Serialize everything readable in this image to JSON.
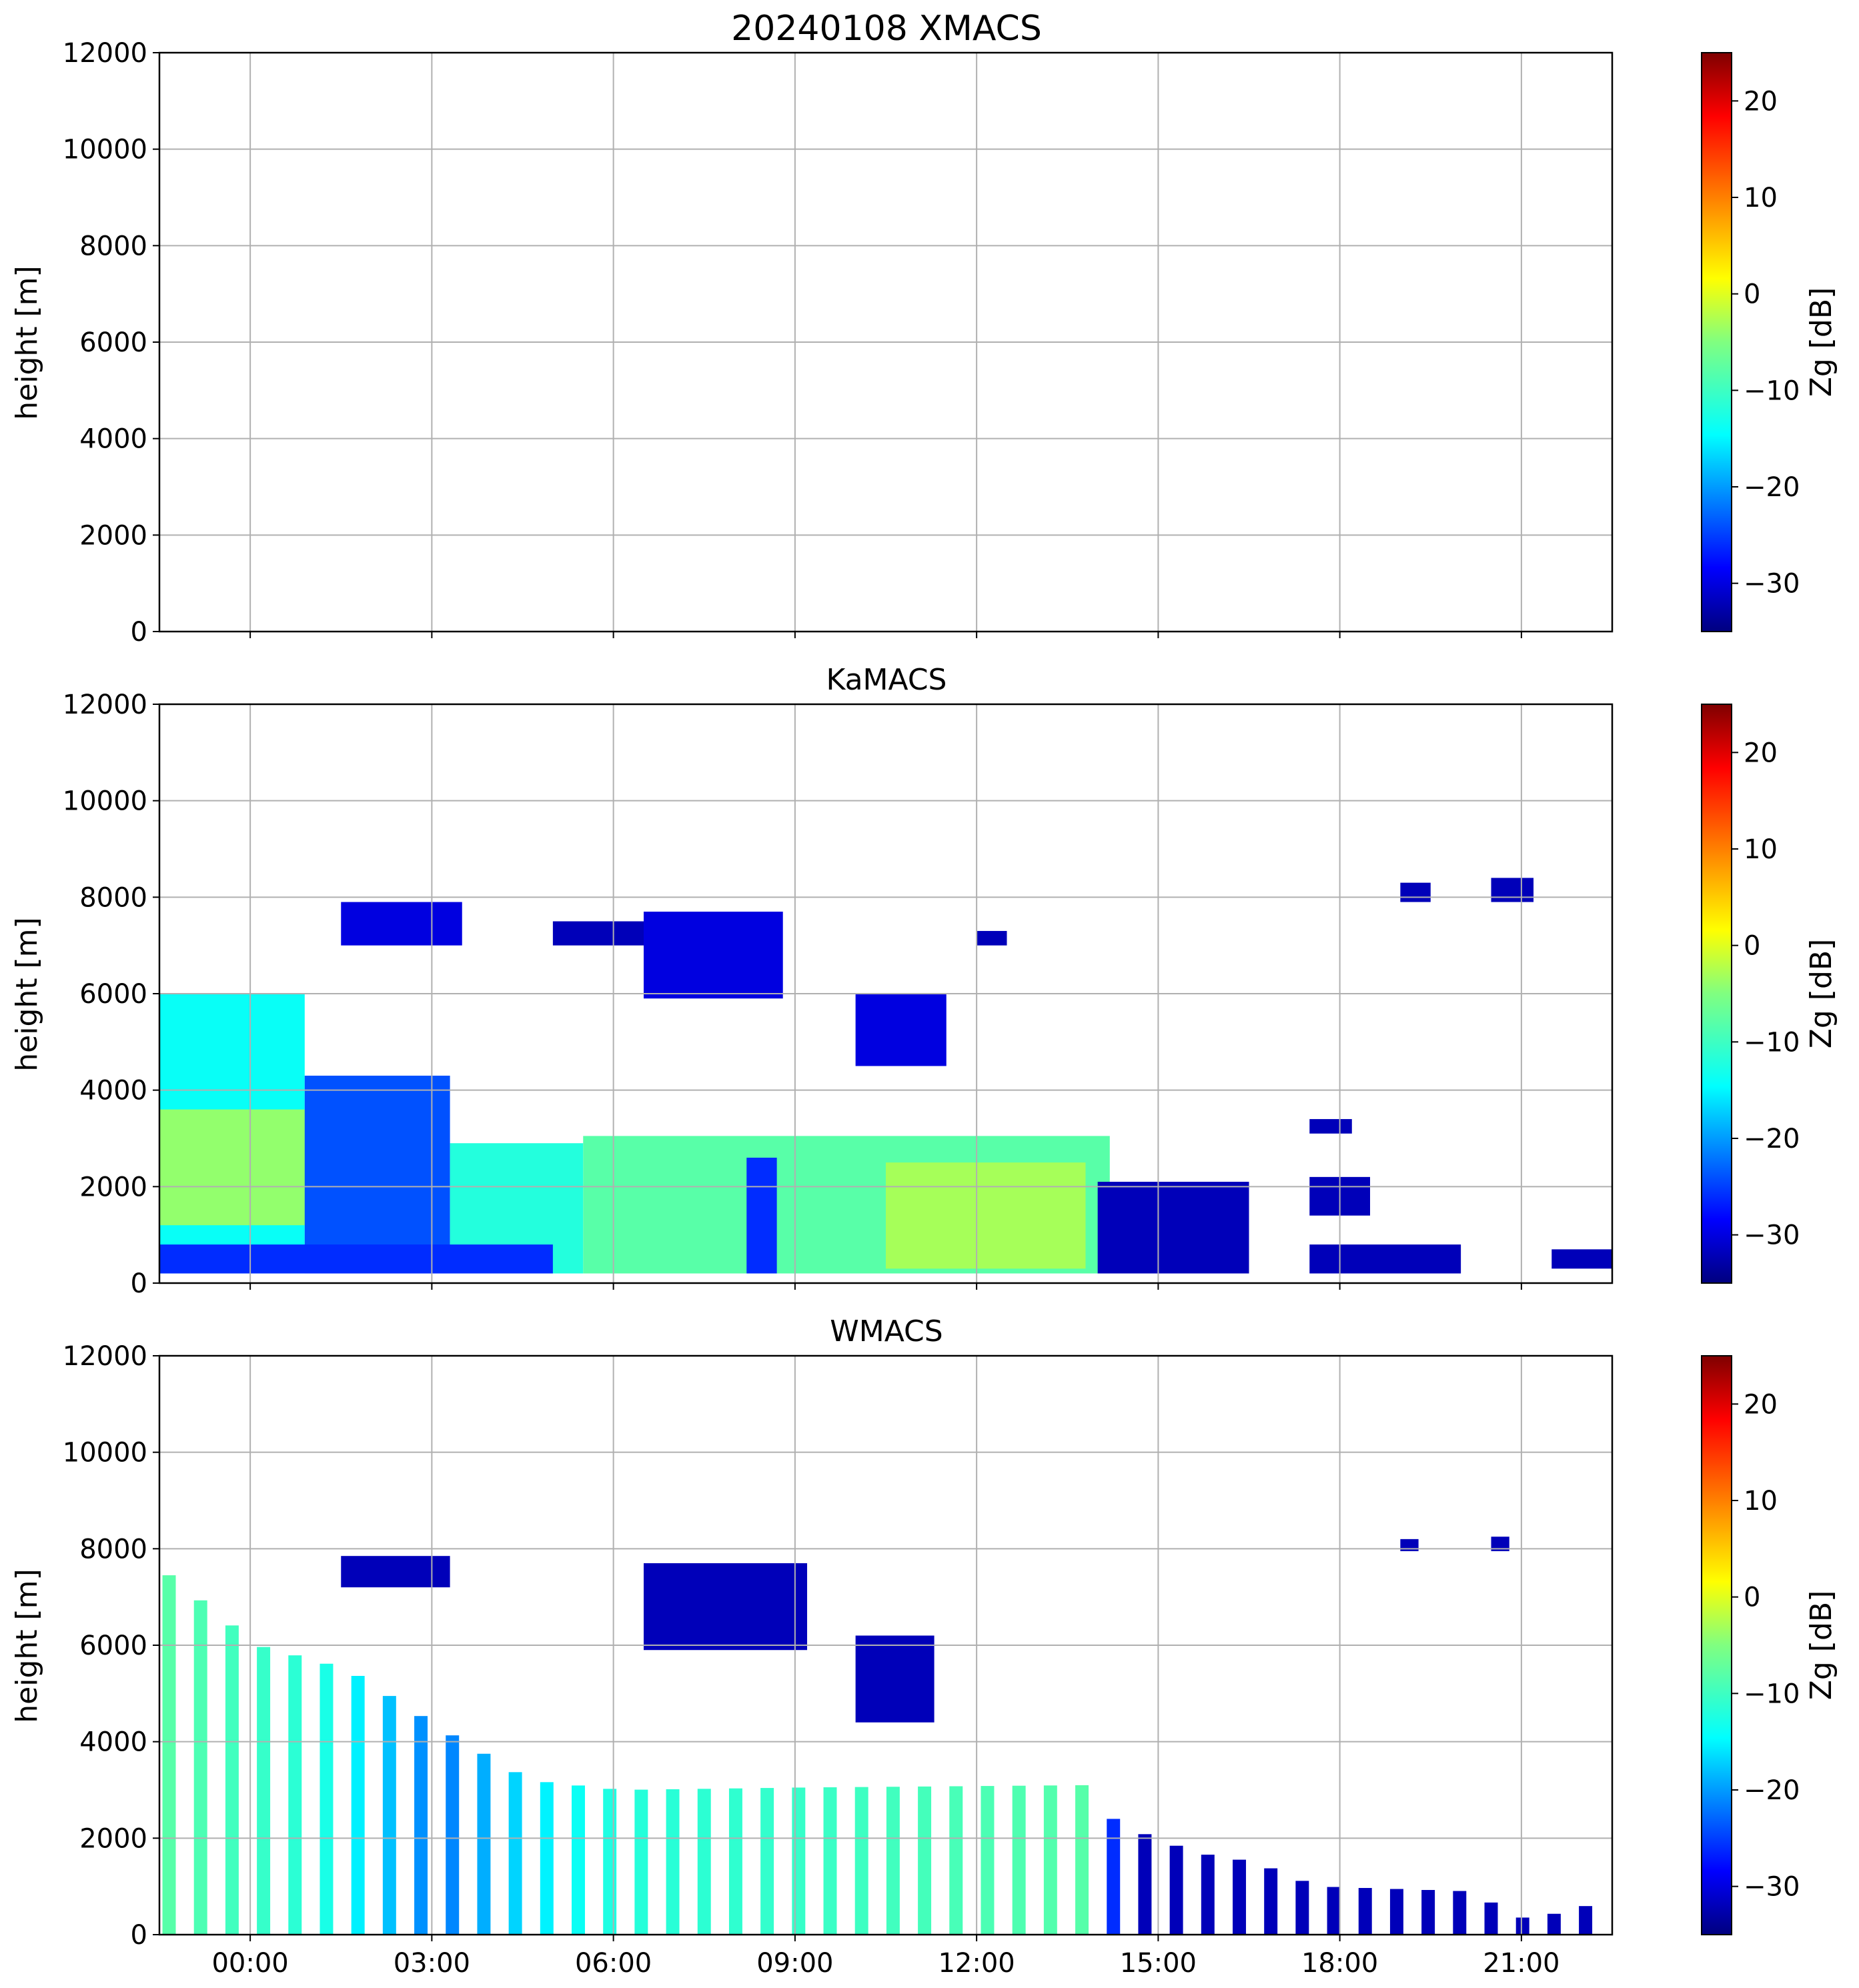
{
  "chart_data": [
    {
      "type": "heatmap",
      "title": "20240108 XMACS",
      "xlabel": "",
      "ylabel": "height [m]",
      "xlim": [
        -1.5,
        22.5
      ],
      "ylim": [
        0,
        12000
      ],
      "yticks": [
        "0",
        "2000",
        "4000",
        "6000",
        "8000",
        "10000",
        "12000"
      ],
      "colorbar": {
        "label": "Zg [dB]",
        "range": [
          -35,
          25
        ],
        "ticks": [
          "−30",
          "−20",
          "−10",
          "0",
          "10",
          "20"
        ]
      },
      "grid": true,
      "blocks": [],
      "stripes": []
    },
    {
      "type": "heatmap",
      "title": "KaMACS",
      "xlabel": "",
      "ylabel": "height [m]",
      "xlim": [
        -1.5,
        22.5
      ],
      "ylim": [
        0,
        12000
      ],
      "yticks": [
        "0",
        "2000",
        "4000",
        "6000",
        "8000",
        "10000",
        "12000"
      ],
      "colorbar": {
        "label": "Zg [dB]",
        "range": [
          -35,
          25
        ],
        "ticks": [
          "−30",
          "−20",
          "−10",
          "0",
          "10",
          "20"
        ]
      },
      "grid": true,
      "blocks": [
        {
          "t0": -1.5,
          "t1": 0.9,
          "h0": 200,
          "h1": 6000,
          "z": -14
        },
        {
          "t0": -1.5,
          "t1": 1.6,
          "h0": 1200,
          "h1": 3600,
          "z": -4
        },
        {
          "t0": 0.9,
          "t1": 3.3,
          "h0": 200,
          "h1": 4300,
          "z": -24
        },
        {
          "t0": 3.3,
          "t1": 5.5,
          "h0": 200,
          "h1": 2900,
          "z": -12
        },
        {
          "t0": 5.5,
          "t1": 14.2,
          "h0": 200,
          "h1": 3050,
          "z": -8
        },
        {
          "t0": 10.5,
          "t1": 13.8,
          "h0": 300,
          "h1": 2500,
          "z": -3
        },
        {
          "t0": 8.2,
          "t1": 8.7,
          "h0": 200,
          "h1": 2600,
          "z": -26
        },
        {
          "t0": -1.5,
          "t1": 5.0,
          "h0": 200,
          "h1": 800,
          "z": -26
        },
        {
          "t0": 14.0,
          "t1": 16.5,
          "h0": 200,
          "h1": 2100,
          "z": -32
        },
        {
          "t0": 17.5,
          "t1": 20.0,
          "h0": 200,
          "h1": 800,
          "z": -32
        },
        {
          "t0": 21.5,
          "t1": 22.5,
          "h0": 300,
          "h1": 700,
          "z": -32
        },
        {
          "t0": 1.5,
          "t1": 3.5,
          "h0": 7000,
          "h1": 7900,
          "z": -30
        },
        {
          "t0": 5.0,
          "t1": 6.5,
          "h0": 7000,
          "h1": 7500,
          "z": -32
        },
        {
          "t0": 6.5,
          "t1": 8.8,
          "h0": 5900,
          "h1": 7700,
          "z": -30
        },
        {
          "t0": 10.0,
          "t1": 11.5,
          "h0": 4500,
          "h1": 6000,
          "z": -30
        },
        {
          "t0": 12.0,
          "t1": 12.5,
          "h0": 7000,
          "h1": 7300,
          "z": -32
        },
        {
          "t0": 17.5,
          "t1": 18.2,
          "h0": 3100,
          "h1": 3400,
          "z": -32
        },
        {
          "t0": 17.5,
          "t1": 18.5,
          "h0": 1400,
          "h1": 2200,
          "z": -32
        },
        {
          "t0": 19.0,
          "t1": 19.5,
          "h0": 7900,
          "h1": 8300,
          "z": -32
        },
        {
          "t0": 20.5,
          "t1": 21.2,
          "h0": 7900,
          "h1": 8400,
          "z": -32
        }
      ],
      "stripes": []
    },
    {
      "type": "heatmap",
      "title": "WMACS",
      "xlabel": "",
      "ylabel": "height [m]",
      "xlim": [
        -1.5,
        22.5
      ],
      "ylim": [
        0,
        12000
      ],
      "yticks": [
        "0",
        "2000",
        "4000",
        "6000",
        "8000",
        "10000",
        "12000"
      ],
      "xticks": [
        "00:00",
        "03:00",
        "06:00",
        "09:00",
        "12:00",
        "15:00",
        "18:00",
        "21:00"
      ],
      "xtick_hours": [
        0,
        3,
        6,
        9,
        12,
        15,
        18,
        21
      ],
      "colorbar": {
        "label": "Zg [dB]",
        "range": [
          -35,
          25
        ],
        "ticks": [
          "−30",
          "−20",
          "−10",
          "0",
          "10",
          "20"
        ]
      },
      "grid": true,
      "blocks": [
        {
          "t0": 19.0,
          "t1": 19.3,
          "h0": 7950,
          "h1": 8200,
          "z": -32
        },
        {
          "t0": 20.5,
          "t1": 20.8,
          "h0": 7950,
          "h1": 8250,
          "z": -32
        },
        {
          "t0": 1.5,
          "t1": 3.3,
          "h0": 7200,
          "h1": 7850,
          "z": -32
        },
        {
          "t0": 6.5,
          "t1": 9.2,
          "h0": 5900,
          "h1": 7700,
          "z": -32
        },
        {
          "t0": 10.0,
          "t1": 11.3,
          "h0": 4400,
          "h1": 6200,
          "z": -32
        }
      ],
      "stripes": {
        "t_start": -1.45,
        "t_end": 22.3,
        "period": 0.52,
        "width": 0.22,
        "top_profile": [
          [
            -1.5,
            7500
          ],
          [
            0,
            6000
          ],
          [
            1.5,
            5500
          ],
          [
            3,
            4300
          ],
          [
            4.5,
            3200
          ],
          [
            6,
            3000
          ],
          [
            9,
            3050
          ],
          [
            13.8,
            3100
          ],
          [
            14.2,
            2300
          ],
          [
            15.5,
            1700
          ],
          [
            16.5,
            1500
          ],
          [
            17.5,
            1000
          ],
          [
            20.0,
            900
          ],
          [
            21.0,
            300
          ],
          [
            22.3,
            700
          ]
        ],
        "z_profile": [
          [
            -1.5,
            -8
          ],
          [
            1.0,
            -12
          ],
          [
            3.0,
            -22
          ],
          [
            4.5,
            -16
          ],
          [
            6.0,
            -12
          ],
          [
            14.0,
            -8
          ],
          [
            14.2,
            -32
          ],
          [
            22.5,
            -32
          ]
        ]
      }
    }
  ]
}
